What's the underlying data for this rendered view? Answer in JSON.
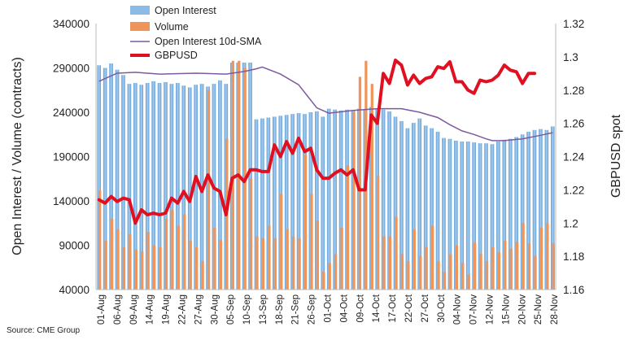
{
  "source": "Source: CME Group",
  "chart_data": {
    "type": "bar",
    "title": "",
    "ylabel_left": "Open Interest / Volume (contracts)",
    "ylabel_right": "GBPUSD spot",
    "xlabel": "",
    "ylim_left": [
      40000,
      340000
    ],
    "ylim_right": [
      1.16,
      1.32
    ],
    "yticks_left": [
      "340000",
      "290000",
      "240000",
      "190000",
      "140000",
      "90000",
      "40000"
    ],
    "yticks_right": [
      "1.32",
      "1.3",
      "1.28",
      "1.26",
      "1.24",
      "1.22",
      "1.2",
      "1.18",
      "1.16"
    ],
    "xtick_labels": [
      "01-Aug",
      "06-Aug",
      "09-Aug",
      "14-Aug",
      "19-Aug",
      "22-Aug",
      "27-Aug",
      "30-Aug",
      "05-Sep",
      "10-Sep",
      "13-Sep",
      "18-Sep",
      "21-Sep",
      "26-Sep",
      "01-Oct",
      "04-Oct",
      "09-Oct",
      "14-Oct",
      "17-Oct",
      "22-Oct",
      "27-Oct",
      "30-Oct",
      "04-Nov",
      "07-Nov",
      "12-Nov",
      "15-Nov",
      "20-Nov",
      "25-Nov",
      "28-Nov"
    ],
    "grid": false,
    "legend_position": "top-left",
    "series": [
      {
        "name": "Open Interest",
        "kind": "bar",
        "axis": "left",
        "color": "#7fb3e0",
        "values": [
          293000,
          290000,
          295000,
          288000,
          282000,
          272000,
          273000,
          271000,
          273000,
          275000,
          273000,
          274000,
          272000,
          273000,
          270000,
          268000,
          271000,
          272000,
          269000,
          272000,
          276000,
          272000,
          296000,
          296000,
          296000,
          296000,
          232000,
          233000,
          234000,
          235000,
          236000,
          237000,
          238000,
          239000,
          238000,
          240000,
          241000,
          235000,
          244000,
          243000,
          242000,
          243000,
          242000,
          244000,
          243000,
          246000,
          244000,
          243000,
          241000,
          235000,
          230000,
          222000,
          228000,
          233000,
          225000,
          222000,
          218000,
          211000,
          210000,
          208000,
          207000,
          207000,
          206000,
          205000,
          205000,
          204000,
          207000,
          209000,
          210000,
          212000,
          215000,
          218000,
          220000,
          221000,
          220000,
          224000
        ]
      },
      {
        "name": "Volume",
        "kind": "bar",
        "axis": "left",
        "color": "#f0955a",
        "values": [
          152000,
          95000,
          120000,
          108000,
          88000,
          102000,
          85000,
          83000,
          105000,
          90000,
          88000,
          120000,
          130000,
          112000,
          125000,
          95000,
          88000,
          72000,
          265000,
          110000,
          96000,
          210000,
          298000,
          298000,
          290000,
          165000,
          100000,
          98000,
          112000,
          98000,
          148000,
          108000,
          100000,
          98000,
          192000,
          148000,
          118000,
          60000,
          70000,
          80000,
          110000,
          180000,
          240000,
          280000,
          298000,
          272000,
          168000,
          100000,
          100000,
          122000,
          80000,
          72000,
          108000,
          78000,
          88000,
          112000,
          72000,
          60000,
          80000,
          90000,
          70000,
          57000,
          93000,
          80000,
          72000,
          88000,
          82000,
          95000,
          86000,
          94000,
          115000,
          92000,
          78000,
          110000,
          115000,
          92000
        ]
      },
      {
        "name": "Open Interest 10d-SMA",
        "kind": "line",
        "axis": "left",
        "color": "#7d5a9e",
        "points": [
          [
            0,
            275000
          ],
          [
            3,
            284000
          ],
          [
            6,
            285000
          ],
          [
            10,
            283000
          ],
          [
            16,
            284000
          ],
          [
            21,
            283000
          ],
          [
            24,
            286000
          ],
          [
            26,
            289000
          ],
          [
            27,
            291000
          ],
          [
            30,
            283000
          ],
          [
            33,
            271000
          ],
          [
            36,
            245000
          ],
          [
            38,
            239000
          ],
          [
            42,
            242000
          ],
          [
            46,
            244000
          ],
          [
            50,
            244000
          ],
          [
            53,
            240000
          ],
          [
            56,
            234000
          ],
          [
            58,
            226000
          ],
          [
            60,
            219000
          ],
          [
            62,
            215000
          ],
          [
            64,
            210000
          ],
          [
            65,
            208000
          ],
          [
            67,
            208000
          ],
          [
            70,
            210000
          ],
          [
            73,
            214000
          ],
          [
            75,
            217000
          ]
        ]
      },
      {
        "name": "GBPUSD",
        "kind": "line",
        "axis": "right",
        "color": "#e01020",
        "points": [
          [
            0,
            1.214
          ],
          [
            1,
            1.212
          ],
          [
            2,
            1.216
          ],
          [
            3,
            1.213
          ],
          [
            4,
            1.215
          ],
          [
            5,
            1.214
          ],
          [
            6,
            1.2
          ],
          [
            7,
            1.208
          ],
          [
            8,
            1.205
          ],
          [
            9,
            1.206
          ],
          [
            10,
            1.205
          ],
          [
            11,
            1.206
          ],
          [
            12,
            1.215
          ],
          [
            13,
            1.212
          ],
          [
            14,
            1.219
          ],
          [
            15,
            1.213
          ],
          [
            16,
            1.228
          ],
          [
            17,
            1.219
          ],
          [
            18,
            1.229
          ],
          [
            19,
            1.221
          ],
          [
            20,
            1.219
          ],
          [
            21,
            1.205
          ],
          [
            22,
            1.227
          ],
          [
            23,
            1.229
          ],
          [
            24,
            1.225
          ],
          [
            25,
            1.232
          ],
          [
            26,
            1.232
          ],
          [
            27,
            1.231
          ],
          [
            28,
            1.231
          ],
          [
            29,
            1.247
          ],
          [
            30,
            1.24
          ],
          [
            31,
            1.249
          ],
          [
            32,
            1.242
          ],
          [
            33,
            1.251
          ],
          [
            34,
            1.243
          ],
          [
            35,
            1.245
          ],
          [
            36,
            1.232
          ],
          [
            37,
            1.227
          ],
          [
            38,
            1.227
          ],
          [
            39,
            1.23
          ],
          [
            40,
            1.232
          ],
          [
            41,
            1.229
          ],
          [
            42,
            1.232
          ],
          [
            43,
            1.22
          ],
          [
            44,
            1.22
          ],
          [
            45,
            1.265
          ],
          [
            46,
            1.26
          ],
          [
            47,
            1.29
          ],
          [
            48,
            1.284
          ],
          [
            49,
            1.298
          ],
          [
            50,
            1.295
          ],
          [
            51,
            1.283
          ],
          [
            52,
            1.289
          ],
          [
            53,
            1.284
          ],
          [
            54,
            1.287
          ],
          [
            55,
            1.288
          ],
          [
            56,
            1.294
          ],
          [
            57,
            1.293
          ],
          [
            58,
            1.297
          ],
          [
            59,
            1.285
          ],
          [
            60,
            1.285
          ],
          [
            61,
            1.28
          ],
          [
            62,
            1.278
          ],
          [
            63,
            1.286
          ],
          [
            64,
            1.285
          ],
          [
            65,
            1.286
          ],
          [
            66,
            1.289
          ],
          [
            67,
            1.295
          ],
          [
            68,
            1.292
          ],
          [
            69,
            1.291
          ],
          [
            70,
            1.284
          ],
          [
            71,
            1.29
          ],
          [
            72,
            1.29
          ]
        ]
      }
    ]
  }
}
